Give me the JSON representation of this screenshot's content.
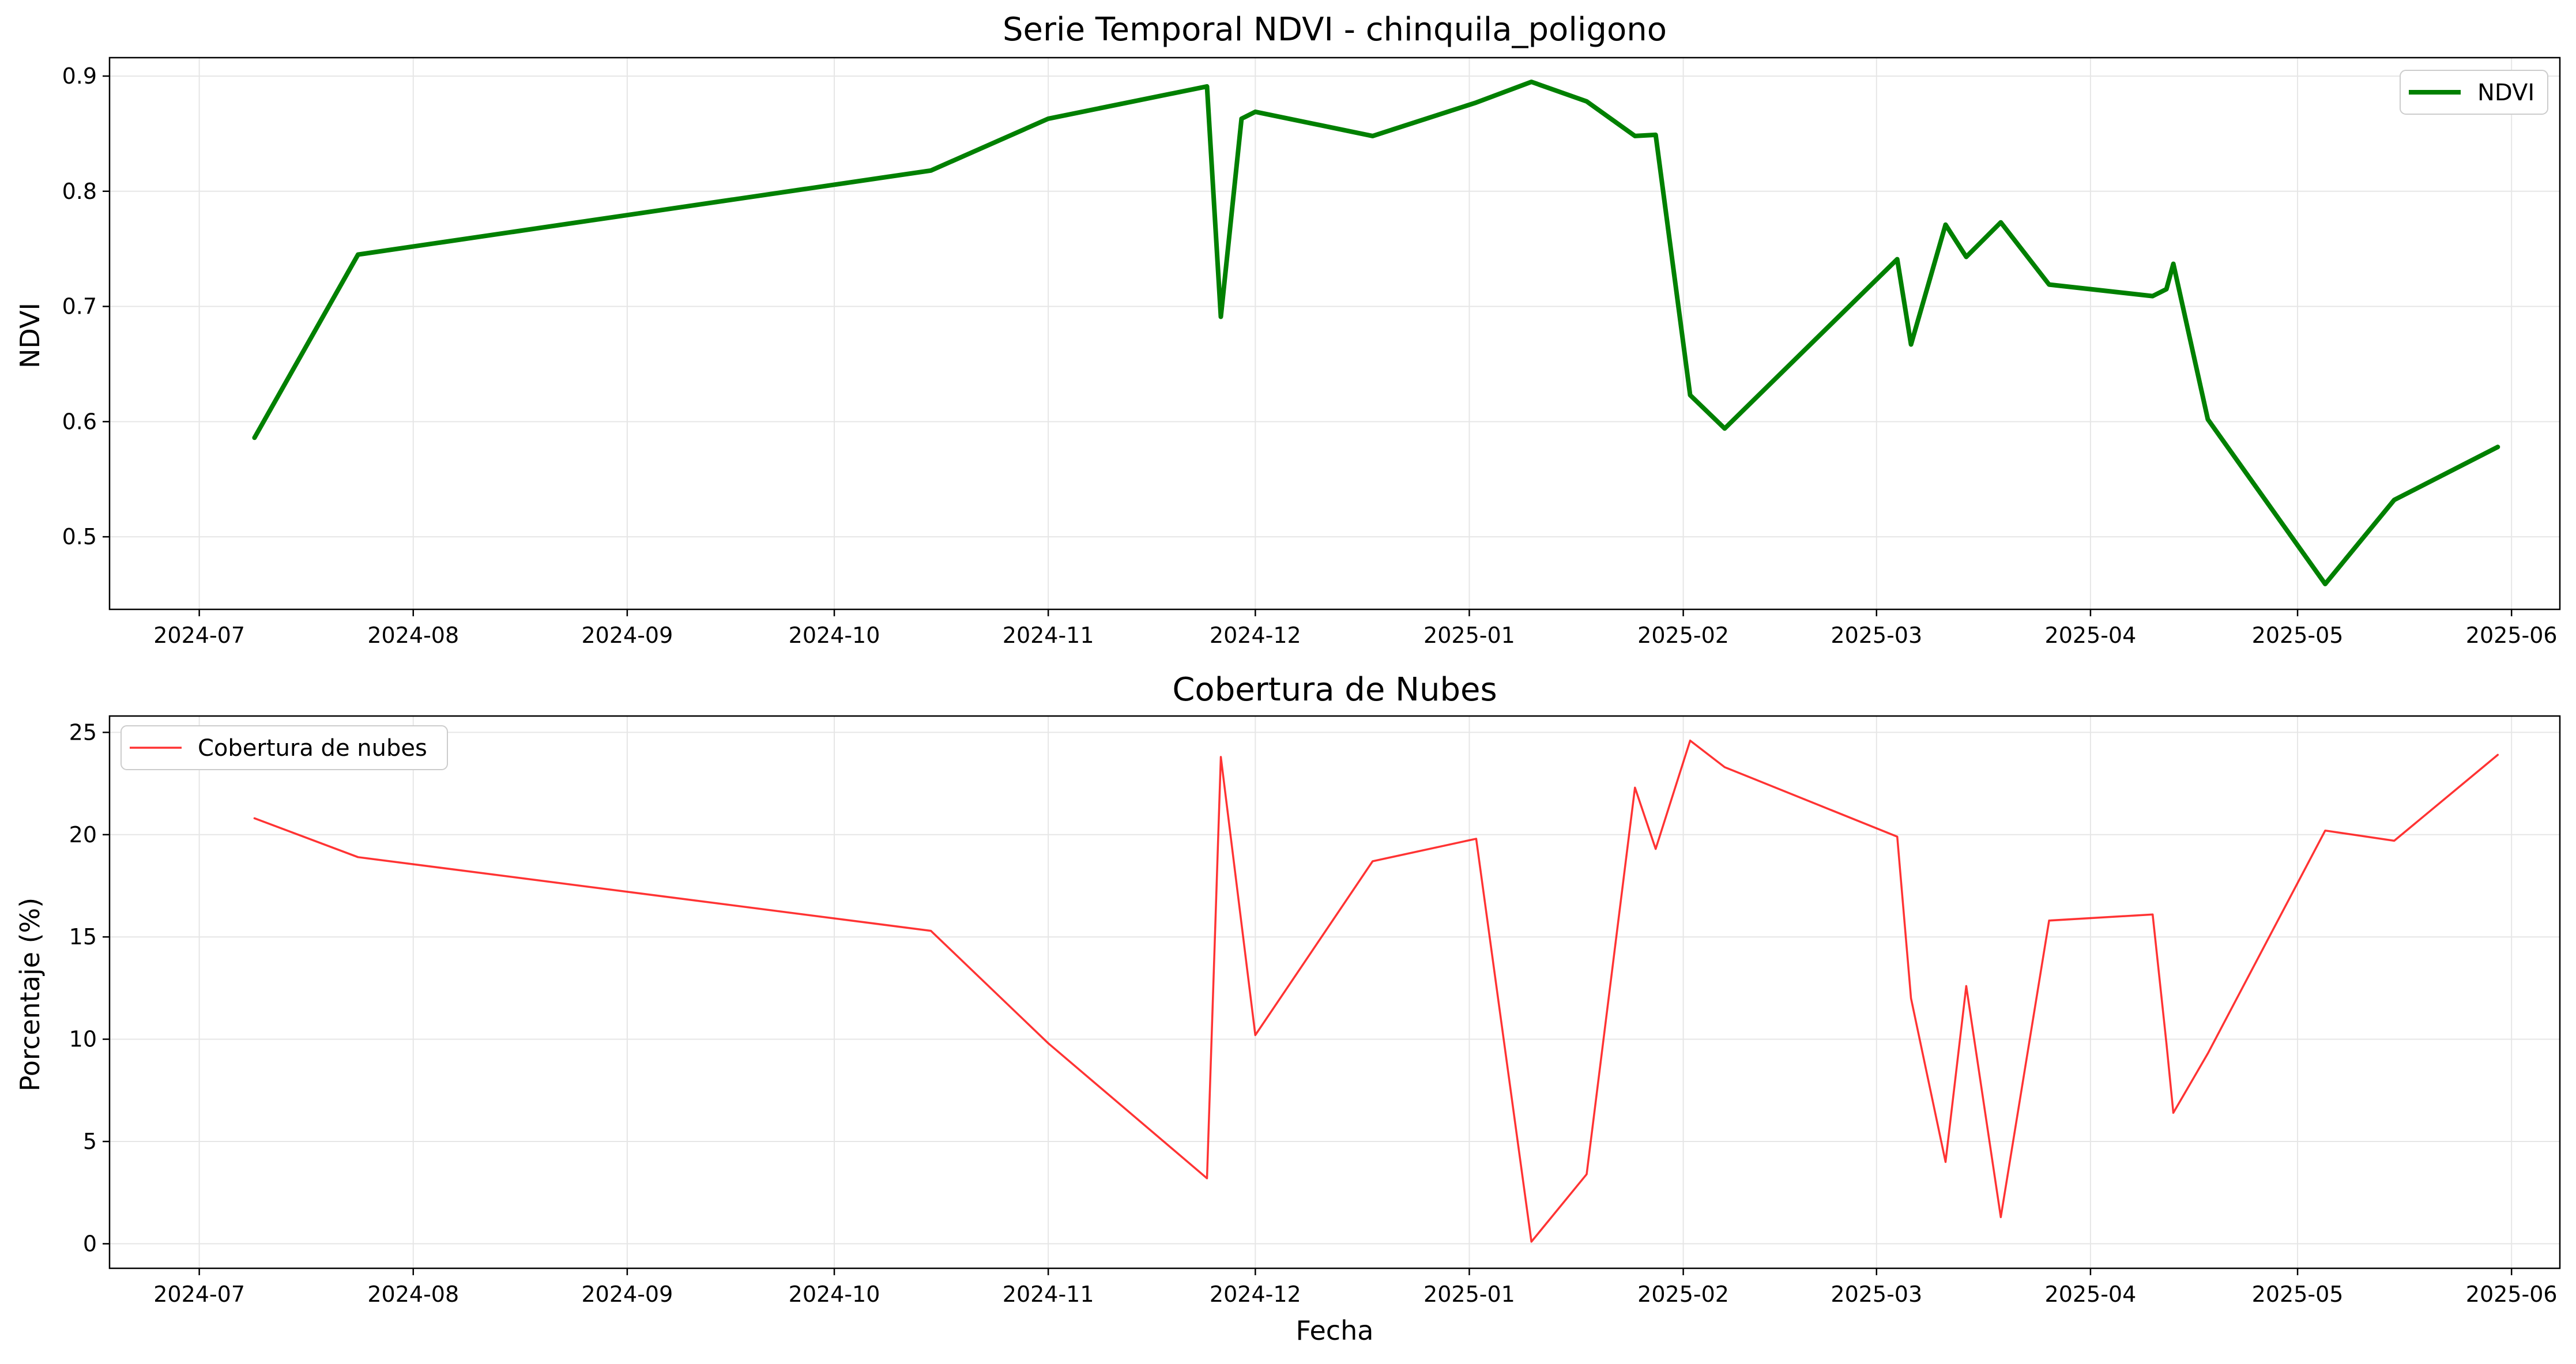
{
  "chart_data": [
    {
      "type": "line",
      "title": "Serie Temporal NDVI - chinquila_poligono",
      "xlabel": "",
      "ylabel": "NDVI",
      "xticks": [
        "2024-07",
        "2024-08",
        "2024-09",
        "2024-10",
        "2024-11",
        "2024-12",
        "2025-01",
        "2025-02",
        "2025-03",
        "2025-04",
        "2025-05",
        "2025-06"
      ],
      "yticks": [
        "0.5",
        "0.6",
        "0.7",
        "0.8",
        "0.9"
      ],
      "xlim": [
        "2024-06-18",
        "2025-06-08"
      ],
      "ylim": [
        0.437,
        0.916
      ],
      "grid": true,
      "legend_position": "top-right",
      "series": [
        {
          "name": "NDVI",
          "color": "#008000",
          "x": [
            "2024-07-09",
            "2024-07-24",
            "2024-10-15",
            "2024-11-01",
            "2024-11-24",
            "2024-11-26",
            "2024-11-29",
            "2024-12-01",
            "2024-12-18",
            "2025-01-02",
            "2025-01-10",
            "2025-01-18",
            "2025-01-25",
            "2025-01-28",
            "2025-02-02",
            "2025-02-07",
            "2025-03-04",
            "2025-03-06",
            "2025-03-11",
            "2025-03-14",
            "2025-03-19",
            "2025-03-26",
            "2025-04-10",
            "2025-04-12",
            "2025-04-13",
            "2025-04-18",
            "2025-05-05",
            "2025-05-15",
            "2025-05-30"
          ],
          "y": [
            0.586,
            0.745,
            0.818,
            0.863,
            0.891,
            0.691,
            0.863,
            0.869,
            0.848,
            0.877,
            0.895,
            0.878,
            0.848,
            0.849,
            0.623,
            0.594,
            0.741,
            0.667,
            0.771,
            0.743,
            0.773,
            0.719,
            0.709,
            0.715,
            0.737,
            0.602,
            0.459,
            0.532,
            0.578
          ]
        }
      ]
    },
    {
      "type": "line",
      "title": "Cobertura de Nubes",
      "xlabel": "Fecha",
      "ylabel": "Porcentaje (%)",
      "xticks": [
        "2024-07",
        "2024-08",
        "2024-09",
        "2024-10",
        "2024-11",
        "2024-12",
        "2025-01",
        "2025-02",
        "2025-03",
        "2025-04",
        "2025-05",
        "2025-06"
      ],
      "yticks": [
        "0",
        "5",
        "10",
        "15",
        "20",
        "25"
      ],
      "xlim": [
        "2024-06-18",
        "2025-06-08"
      ],
      "ylim": [
        -1.2,
        25.8
      ],
      "grid": true,
      "legend_position": "top-left",
      "series": [
        {
          "name": "Cobertura de nubes",
          "color": "#ff0000",
          "x": [
            "2024-07-09",
            "2024-07-24",
            "2024-10-15",
            "2024-11-01",
            "2024-11-24",
            "2024-11-26",
            "2024-12-01",
            "2024-12-18",
            "2025-01-02",
            "2025-01-10",
            "2025-01-18",
            "2025-01-25",
            "2025-01-28",
            "2025-02-02",
            "2025-02-07",
            "2025-03-04",
            "2025-03-06",
            "2025-03-11",
            "2025-03-14",
            "2025-03-19",
            "2025-03-26",
            "2025-04-10",
            "2025-04-12",
            "2025-04-13",
            "2025-04-18",
            "2025-05-05",
            "2025-05-15",
            "2025-05-30"
          ],
          "y": [
            20.8,
            18.9,
            15.3,
            9.8,
            3.2,
            23.8,
            10.2,
            18.7,
            19.8,
            0.1,
            3.4,
            22.3,
            19.3,
            24.6,
            23.3,
            19.9,
            12.0,
            4.0,
            12.6,
            1.3,
            15.8,
            16.1,
            9.8,
            6.4,
            9.3,
            20.2,
            19.7,
            23.9
          ]
        }
      ]
    }
  ]
}
